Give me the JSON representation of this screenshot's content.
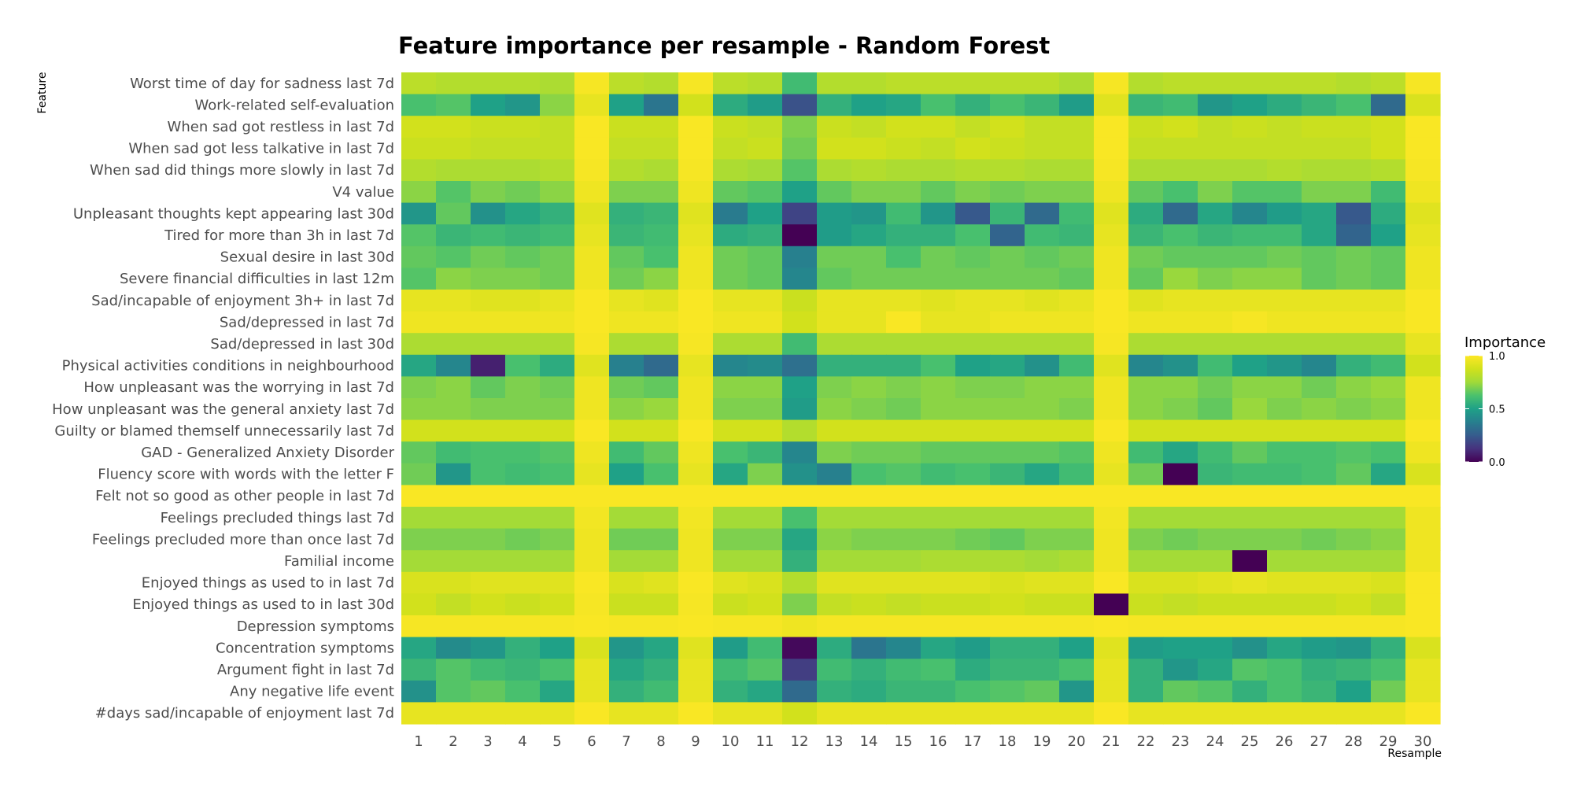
{
  "chart_data": {
    "type": "heatmap",
    "title": "Feature importance per resample - Random Forest",
    "xlabel": "Resample",
    "ylabel": "Feature",
    "x": [
      "1",
      "2",
      "3",
      "4",
      "5",
      "6",
      "7",
      "8",
      "9",
      "10",
      "11",
      "12",
      "13",
      "14",
      "15",
      "16",
      "17",
      "18",
      "19",
      "20",
      "21",
      "22",
      "23",
      "24",
      "25",
      "26",
      "27",
      "28",
      "29",
      "30"
    ],
    "y": [
      "Worst time of day for sadness last 7d",
      "Work-related self-evaluation",
      "When sad got restless in last 7d",
      "When sad got less talkative in last 7d",
      "When sad did things more slowly in last 7d",
      "V4 value",
      "Unpleasant thoughts kept appearing last 30d",
      "Tired for more than 3h in last 7d",
      "Sexual desire in last 30d",
      "Severe financial difficulties in last 12m",
      "Sad/incapable of enjoyment 3h+ in last 7d",
      "Sad/depressed in last 7d",
      "Sad/depressed in last 30d",
      "Physical activities conditions in neighbourhood",
      "How unpleasant was the worrying in last 7d",
      "How unpleasant was the general anxiety last 7d",
      "Guilty or blamed themself unnecessarily last 7d",
      "GAD - Generalized Anxiety Disorder",
      "Fluency score with words with the letter F",
      "Felt not so good as other people in last 7d",
      "Feelings precluded things last 7d",
      "Feelings precluded more than once last 7d",
      "Familial income",
      "Enjoyed things as used to in last 7d",
      "Enjoyed things as used to in last 30d",
      "Depression symptoms",
      "Concentration symptoms",
      "Argument fight in last 7d",
      "Any negative life event",
      "#days sad/incapable of enjoyment last 7d"
    ],
    "z": [
      [
        0.82,
        0.8,
        0.8,
        0.8,
        0.78,
        0.98,
        0.82,
        0.8,
        0.98,
        0.82,
        0.8,
        0.6,
        0.8,
        0.8,
        0.82,
        0.82,
        0.82,
        0.82,
        0.82,
        0.78,
        0.98,
        0.8,
        0.82,
        0.82,
        0.82,
        0.82,
        0.82,
        0.8,
        0.82,
        0.98
      ],
      [
        0.62,
        0.64,
        0.5,
        0.46,
        0.72,
        0.94,
        0.5,
        0.34,
        0.88,
        0.54,
        0.48,
        0.22,
        0.56,
        0.5,
        0.52,
        0.62,
        0.56,
        0.62,
        0.58,
        0.48,
        0.92,
        0.58,
        0.6,
        0.46,
        0.5,
        0.54,
        0.58,
        0.62,
        0.3,
        0.9
      ],
      [
        0.88,
        0.88,
        0.86,
        0.86,
        0.84,
        0.99,
        0.86,
        0.86,
        0.99,
        0.86,
        0.84,
        0.7,
        0.86,
        0.84,
        0.88,
        0.88,
        0.84,
        0.88,
        0.84,
        0.84,
        0.99,
        0.86,
        0.88,
        0.84,
        0.86,
        0.84,
        0.86,
        0.86,
        0.88,
        0.99
      ],
      [
        0.86,
        0.86,
        0.84,
        0.84,
        0.84,
        0.99,
        0.84,
        0.84,
        0.99,
        0.84,
        0.86,
        0.68,
        0.88,
        0.88,
        0.86,
        0.84,
        0.88,
        0.86,
        0.84,
        0.84,
        0.99,
        0.84,
        0.84,
        0.84,
        0.84,
        0.84,
        0.84,
        0.84,
        0.88,
        0.99
      ],
      [
        0.8,
        0.78,
        0.78,
        0.78,
        0.8,
        0.98,
        0.8,
        0.78,
        0.98,
        0.78,
        0.76,
        0.64,
        0.78,
        0.8,
        0.78,
        0.78,
        0.8,
        0.8,
        0.78,
        0.78,
        0.98,
        0.78,
        0.78,
        0.78,
        0.78,
        0.8,
        0.78,
        0.78,
        0.8,
        0.98
      ],
      [
        0.72,
        0.64,
        0.7,
        0.68,
        0.72,
        0.96,
        0.7,
        0.7,
        0.96,
        0.66,
        0.64,
        0.5,
        0.66,
        0.7,
        0.7,
        0.66,
        0.7,
        0.68,
        0.7,
        0.7,
        0.96,
        0.66,
        0.62,
        0.7,
        0.64,
        0.64,
        0.7,
        0.7,
        0.6,
        0.96
      ],
      [
        0.46,
        0.66,
        0.44,
        0.52,
        0.56,
        0.92,
        0.56,
        0.58,
        0.92,
        0.36,
        0.5,
        0.18,
        0.48,
        0.46,
        0.6,
        0.46,
        0.24,
        0.58,
        0.3,
        0.6,
        0.92,
        0.54,
        0.3,
        0.52,
        0.4,
        0.48,
        0.52,
        0.24,
        0.54,
        0.92
      ],
      [
        0.64,
        0.58,
        0.6,
        0.58,
        0.6,
        0.94,
        0.58,
        0.6,
        0.94,
        0.54,
        0.56,
        0.0,
        0.48,
        0.52,
        0.56,
        0.56,
        0.62,
        0.28,
        0.6,
        0.58,
        0.94,
        0.58,
        0.62,
        0.58,
        0.6,
        0.6,
        0.52,
        0.28,
        0.5,
        0.94
      ],
      [
        0.66,
        0.64,
        0.68,
        0.66,
        0.68,
        0.96,
        0.66,
        0.62,
        0.96,
        0.68,
        0.66,
        0.38,
        0.68,
        0.68,
        0.62,
        0.68,
        0.66,
        0.68,
        0.66,
        0.68,
        0.96,
        0.68,
        0.66,
        0.66,
        0.66,
        0.68,
        0.66,
        0.68,
        0.66,
        0.96
      ],
      [
        0.64,
        0.72,
        0.7,
        0.7,
        0.68,
        0.96,
        0.68,
        0.72,
        0.96,
        0.68,
        0.66,
        0.4,
        0.66,
        0.68,
        0.68,
        0.68,
        0.68,
        0.68,
        0.68,
        0.66,
        0.96,
        0.66,
        0.74,
        0.7,
        0.72,
        0.72,
        0.66,
        0.68,
        0.66,
        0.96
      ],
      [
        0.94,
        0.94,
        0.92,
        0.92,
        0.94,
        0.99,
        0.94,
        0.92,
        0.99,
        0.94,
        0.94,
        0.86,
        0.94,
        0.94,
        0.94,
        0.92,
        0.94,
        0.94,
        0.92,
        0.94,
        0.99,
        0.92,
        0.94,
        0.94,
        0.94,
        0.94,
        0.94,
        0.94,
        0.94,
        0.99
      ],
      [
        0.96,
        0.96,
        0.96,
        0.96,
        0.96,
        0.99,
        0.96,
        0.96,
        0.99,
        0.96,
        0.96,
        0.88,
        0.94,
        0.94,
        0.99,
        0.94,
        0.94,
        0.96,
        0.96,
        0.96,
        0.99,
        0.96,
        0.96,
        0.96,
        0.98,
        0.96,
        0.96,
        0.96,
        0.96,
        0.99
      ],
      [
        0.78,
        0.78,
        0.78,
        0.78,
        0.78,
        0.98,
        0.78,
        0.78,
        0.98,
        0.78,
        0.78,
        0.6,
        0.78,
        0.78,
        0.78,
        0.78,
        0.78,
        0.78,
        0.78,
        0.78,
        0.98,
        0.78,
        0.78,
        0.78,
        0.78,
        0.78,
        0.78,
        0.78,
        0.78,
        0.94
      ],
      [
        0.52,
        0.4,
        0.08,
        0.62,
        0.54,
        0.92,
        0.38,
        0.3,
        0.94,
        0.4,
        0.42,
        0.32,
        0.56,
        0.56,
        0.56,
        0.62,
        0.5,
        0.52,
        0.44,
        0.6,
        0.92,
        0.4,
        0.44,
        0.6,
        0.5,
        0.46,
        0.4,
        0.56,
        0.6,
        0.88
      ],
      [
        0.7,
        0.72,
        0.66,
        0.7,
        0.68,
        0.96,
        0.68,
        0.66,
        0.96,
        0.72,
        0.72,
        0.5,
        0.7,
        0.72,
        0.7,
        0.72,
        0.7,
        0.7,
        0.72,
        0.72,
        0.96,
        0.72,
        0.72,
        0.68,
        0.72,
        0.72,
        0.68,
        0.72,
        0.74,
        0.96
      ],
      [
        0.72,
        0.72,
        0.7,
        0.7,
        0.7,
        0.96,
        0.72,
        0.74,
        0.96,
        0.7,
        0.7,
        0.48,
        0.72,
        0.7,
        0.68,
        0.72,
        0.72,
        0.72,
        0.72,
        0.7,
        0.96,
        0.72,
        0.7,
        0.66,
        0.74,
        0.7,
        0.72,
        0.7,
        0.72,
        0.96
      ],
      [
        0.88,
        0.88,
        0.88,
        0.88,
        0.88,
        0.99,
        0.88,
        0.88,
        0.99,
        0.88,
        0.88,
        0.8,
        0.88,
        0.88,
        0.88,
        0.88,
        0.88,
        0.88,
        0.88,
        0.88,
        0.99,
        0.88,
        0.88,
        0.88,
        0.88,
        0.88,
        0.88,
        0.88,
        0.88,
        0.99
      ],
      [
        0.66,
        0.6,
        0.62,
        0.62,
        0.64,
        0.96,
        0.6,
        0.66,
        0.96,
        0.62,
        0.58,
        0.4,
        0.7,
        0.68,
        0.68,
        0.66,
        0.66,
        0.66,
        0.66,
        0.64,
        0.96,
        0.6,
        0.52,
        0.6,
        0.66,
        0.62,
        0.62,
        0.64,
        0.62,
        0.96
      ],
      [
        0.68,
        0.46,
        0.62,
        0.6,
        0.62,
        0.94,
        0.5,
        0.62,
        0.94,
        0.52,
        0.7,
        0.44,
        0.38,
        0.62,
        0.64,
        0.6,
        0.62,
        0.58,
        0.52,
        0.6,
        0.94,
        0.68,
        0.0,
        0.58,
        0.6,
        0.6,
        0.62,
        0.66,
        0.52,
        0.9
      ],
      [
        0.99,
        0.99,
        0.99,
        0.99,
        0.99,
        0.99,
        0.99,
        0.99,
        0.99,
        0.99,
        0.99,
        0.99,
        0.99,
        0.99,
        0.99,
        0.99,
        0.99,
        0.99,
        0.99,
        0.99,
        0.99,
        0.99,
        0.99,
        0.99,
        0.99,
        0.99,
        0.99,
        0.99,
        0.99,
        0.99
      ],
      [
        0.76,
        0.76,
        0.76,
        0.76,
        0.76,
        0.97,
        0.76,
        0.76,
        0.97,
        0.76,
        0.76,
        0.62,
        0.76,
        0.76,
        0.76,
        0.76,
        0.76,
        0.76,
        0.76,
        0.76,
        0.97,
        0.76,
        0.76,
        0.76,
        0.76,
        0.76,
        0.76,
        0.76,
        0.76,
        0.96
      ],
      [
        0.7,
        0.7,
        0.7,
        0.68,
        0.7,
        0.96,
        0.68,
        0.68,
        0.96,
        0.7,
        0.7,
        0.52,
        0.72,
        0.7,
        0.7,
        0.7,
        0.68,
        0.66,
        0.7,
        0.7,
        0.96,
        0.7,
        0.68,
        0.7,
        0.7,
        0.7,
        0.68,
        0.7,
        0.72,
        0.96
      ],
      [
        0.76,
        0.76,
        0.76,
        0.76,
        0.76,
        0.96,
        0.76,
        0.76,
        0.96,
        0.76,
        0.76,
        0.56,
        0.76,
        0.76,
        0.76,
        0.78,
        0.78,
        0.78,
        0.76,
        0.78,
        0.96,
        0.76,
        0.76,
        0.76,
        0.0,
        0.76,
        0.76,
        0.76,
        0.76,
        0.96
      ],
      [
        0.9,
        0.9,
        0.92,
        0.92,
        0.92,
        0.99,
        0.9,
        0.92,
        0.99,
        0.92,
        0.9,
        0.8,
        0.92,
        0.92,
        0.92,
        0.92,
        0.92,
        0.9,
        0.92,
        0.92,
        0.99,
        0.9,
        0.9,
        0.92,
        0.94,
        0.92,
        0.92,
        0.92,
        0.9,
        0.99
      ],
      [
        0.88,
        0.84,
        0.88,
        0.86,
        0.88,
        0.98,
        0.86,
        0.86,
        0.98,
        0.86,
        0.88,
        0.7,
        0.84,
        0.86,
        0.84,
        0.86,
        0.86,
        0.88,
        0.86,
        0.86,
        0.0,
        0.86,
        0.84,
        0.86,
        0.86,
        0.86,
        0.86,
        0.88,
        0.84,
        0.99
      ],
      [
        0.98,
        0.98,
        0.98,
        0.98,
        0.98,
        0.99,
        0.98,
        0.98,
        0.99,
        0.98,
        0.98,
        0.96,
        0.98,
        0.98,
        0.98,
        0.98,
        0.98,
        0.98,
        0.98,
        0.98,
        0.99,
        0.98,
        0.98,
        0.98,
        0.98,
        0.98,
        0.98,
        0.98,
        0.98,
        0.99
      ],
      [
        0.52,
        0.42,
        0.46,
        0.56,
        0.5,
        0.9,
        0.46,
        0.52,
        0.92,
        0.48,
        0.6,
        0.02,
        0.54,
        0.34,
        0.4,
        0.52,
        0.48,
        0.56,
        0.56,
        0.5,
        0.92,
        0.48,
        0.5,
        0.5,
        0.44,
        0.52,
        0.48,
        0.46,
        0.56,
        0.9
      ],
      [
        0.58,
        0.64,
        0.6,
        0.58,
        0.62,
        0.94,
        0.52,
        0.56,
        0.94,
        0.6,
        0.64,
        0.16,
        0.6,
        0.56,
        0.6,
        0.62,
        0.54,
        0.58,
        0.58,
        0.62,
        0.94,
        0.56,
        0.46,
        0.52,
        0.64,
        0.62,
        0.56,
        0.58,
        0.62,
        0.94
      ],
      [
        0.44,
        0.64,
        0.66,
        0.62,
        0.52,
        0.94,
        0.56,
        0.6,
        0.94,
        0.56,
        0.52,
        0.3,
        0.56,
        0.54,
        0.58,
        0.58,
        0.62,
        0.64,
        0.66,
        0.46,
        0.94,
        0.56,
        0.66,
        0.64,
        0.56,
        0.62,
        0.58,
        0.5,
        0.68,
        0.94
      ],
      [
        0.94,
        0.94,
        0.94,
        0.94,
        0.94,
        0.99,
        0.94,
        0.94,
        0.99,
        0.94,
        0.94,
        0.88,
        0.94,
        0.94,
        0.94,
        0.94,
        0.94,
        0.94,
        0.94,
        0.94,
        0.99,
        0.94,
        0.94,
        0.94,
        0.94,
        0.94,
        0.94,
        0.94,
        0.94,
        0.99
      ]
    ],
    "legend": {
      "title": "Importance",
      "ticks": [
        "1.0",
        "0.5",
        "0.0"
      ],
      "tick_values": [
        1.0,
        0.5,
        0.0
      ],
      "placement": "right"
    },
    "colorscale": "viridis",
    "zlim": [
      0,
      1
    ]
  }
}
